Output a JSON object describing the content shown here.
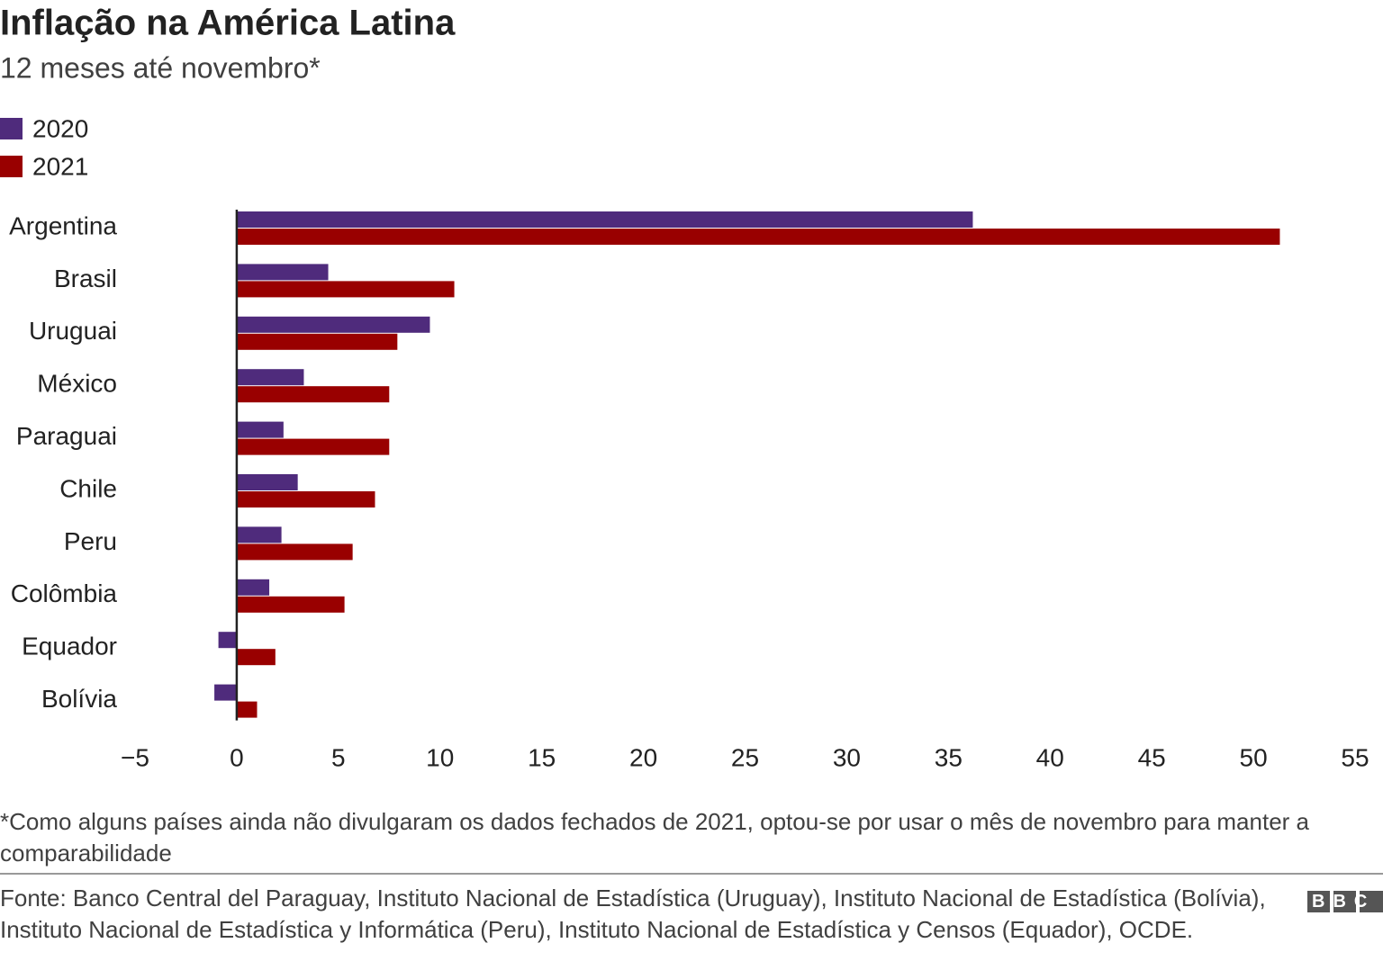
{
  "chart_data": {
    "type": "bar",
    "orientation": "horizontal",
    "title": "Inflação na América Latina",
    "subtitle": "12 meses até novembro*",
    "categories": [
      "Argentina",
      "Brasil",
      "Uruguai",
      "México",
      "Paraguai",
      "Chile",
      "Peru",
      "Colômbia",
      "Equador",
      "Bolívia"
    ],
    "series": [
      {
        "name": "2020",
        "color": "#4f2b7c",
        "values": [
          36.2,
          4.5,
          9.5,
          3.3,
          2.3,
          3.0,
          2.2,
          1.6,
          -0.9,
          -1.1
        ]
      },
      {
        "name": "2021",
        "color": "#990000",
        "values": [
          51.3,
          10.7,
          7.9,
          7.5,
          7.5,
          6.8,
          5.7,
          5.3,
          1.9,
          1.0
        ]
      }
    ],
    "xlim": [
      -5,
      55
    ],
    "xticks": [
      {
        "value": -5,
        "label": "−5"
      },
      0,
      5,
      10,
      15,
      20,
      25,
      30,
      35,
      40,
      45,
      50,
      55
    ],
    "grid": false,
    "legend": "top-left",
    "footnote": "*Como alguns países ainda não divulgaram os dados fechados de 2021, optou-se por usar o mês de novembro para manter a comparabilidade",
    "source": "Fonte: Banco Central del Paraguay, Instituto Nacional de Estadística (Uruguay), Instituto Nacional de Estadística (Bolívia), Instituto Nacional de Estadística y Informática (Peru), Instituto Nacional de Estadística y Censos (Equador), OCDE.",
    "logo": "BBC"
  }
}
